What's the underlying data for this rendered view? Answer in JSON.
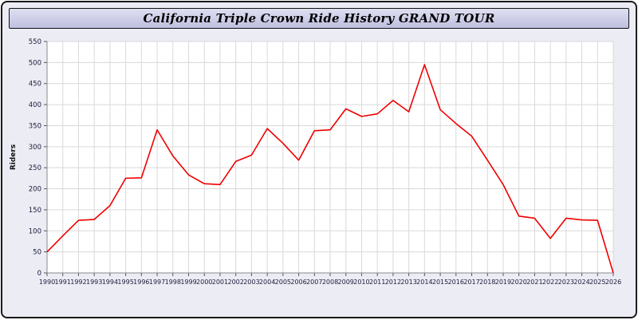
{
  "window": {
    "title": "California Triple Crown Ride History GRAND TOUR"
  },
  "chart_data": {
    "type": "line",
    "title": "California Triple Crown Ride History GRAND TOUR",
    "xlabel": "",
    "ylabel": "Riders",
    "ylim": [
      0,
      550
    ],
    "y_tick_step": 50,
    "grid": true,
    "legend": "none",
    "line_color": "#ee0000",
    "grid_color": "#d9d9d9",
    "plot_bg": "#ffffff",
    "outer_bg": "#ececf5",
    "tick_label_color": "#1a1a3a",
    "x": [
      1990,
      1991,
      1992,
      1993,
      1994,
      1995,
      1996,
      1997,
      1998,
      1999,
      2000,
      2001,
      2002,
      2003,
      2004,
      2005,
      2006,
      2007,
      2008,
      2009,
      2010,
      2011,
      2012,
      2013,
      2014,
      2015,
      2016,
      2017,
      2018,
      2019,
      2020,
      2021,
      2022,
      2023,
      2024,
      2025,
      2026
    ],
    "values": [
      50,
      88,
      125,
      127,
      160,
      225,
      226,
      340,
      278,
      233,
      212,
      210,
      265,
      280,
      343,
      308,
      268,
      338,
      340,
      390,
      372,
      378,
      410,
      383,
      495,
      388,
      355,
      325,
      268,
      210,
      135,
      130,
      82,
      130,
      126,
      125,
      0
    ]
  }
}
